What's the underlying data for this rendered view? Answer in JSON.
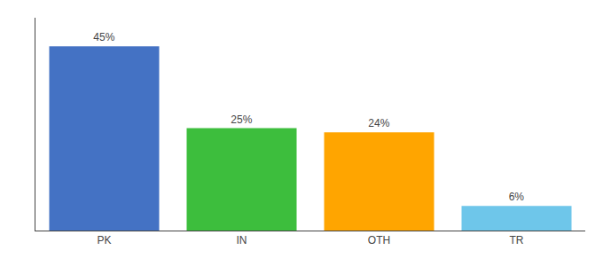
{
  "chart_data": {
    "type": "bar",
    "categories": [
      "PK",
      "IN",
      "OTH",
      "TR"
    ],
    "values": [
      45,
      25,
      24,
      6
    ],
    "value_labels": [
      "45%",
      "25%",
      "24%",
      "6%"
    ],
    "data_labels": true,
    "colors": [
      "#4472C4",
      "#3DBE3D",
      "#FFA500",
      "#6EC6EA"
    ],
    "ylim": [
      0,
      52
    ],
    "grid": false,
    "tick_labels": "x"
  }
}
